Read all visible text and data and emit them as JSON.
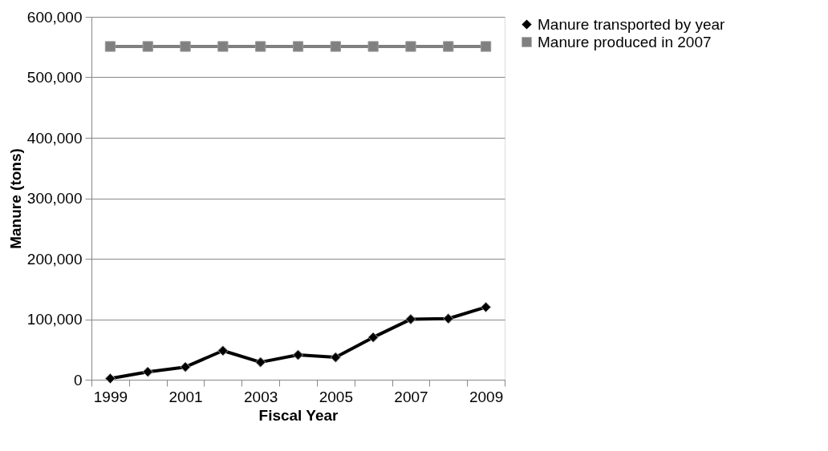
{
  "chart_data": {
    "type": "line",
    "xlabel": "Fiscal Year",
    "ylabel": "Manure (tons)",
    "categories": [
      "1999",
      null,
      "2001",
      null,
      "2003",
      null,
      "2005",
      null,
      "2007",
      null,
      "2009"
    ],
    "series": [
      {
        "name": "Manure transported by year",
        "color": "#000000",
        "marker": "diamond",
        "values": [
          2000,
          13000,
          21000,
          48000,
          29000,
          41000,
          37000,
          70000,
          100000,
          101000,
          120000
        ]
      },
      {
        "name": "Manure produced in 2007",
        "color": "#808080",
        "marker": "square",
        "values": [
          551000,
          551000,
          551000,
          551000,
          551000,
          551000,
          551000,
          551000,
          551000,
          551000,
          551000
        ]
      }
    ],
    "ylim": [
      0,
      600000
    ],
    "yticks": [
      0,
      {
        "value": 100000,
        "label": "100,000"
      },
      {
        "value": 200000,
        "label": "200,000"
      },
      {
        "value": 300000,
        "label": "300,000"
      },
      {
        "value": 400000,
        "label": "400,000"
      },
      {
        "value": 500000,
        "label": "500,000"
      },
      {
        "value": 600000,
        "label": "600,000"
      }
    ],
    "grid": "y",
    "legend": "right",
    "line_style": "solid"
  }
}
